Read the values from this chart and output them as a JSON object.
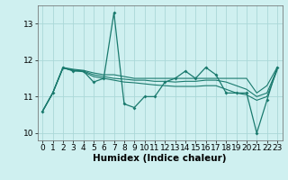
{
  "xlabel": "Humidex (Indice chaleur)",
  "x": [
    0,
    1,
    2,
    3,
    4,
    5,
    6,
    7,
    8,
    9,
    10,
    11,
    12,
    13,
    14,
    15,
    16,
    17,
    18,
    19,
    20,
    21,
    22,
    23
  ],
  "y_main": [
    10.6,
    11.1,
    11.8,
    11.7,
    11.7,
    11.4,
    11.5,
    13.3,
    10.8,
    10.7,
    11.0,
    11.0,
    11.4,
    11.5,
    11.7,
    11.5,
    11.8,
    11.6,
    11.1,
    11.1,
    11.1,
    10.0,
    10.9,
    11.8
  ],
  "y_trend1": [
    10.6,
    11.1,
    11.8,
    11.75,
    11.72,
    11.65,
    11.6,
    11.6,
    11.55,
    11.5,
    11.5,
    11.5,
    11.5,
    11.5,
    11.5,
    11.5,
    11.5,
    11.5,
    11.5,
    11.5,
    11.5,
    11.1,
    11.3,
    11.8
  ],
  "y_trend2": [
    10.6,
    11.1,
    11.78,
    11.73,
    11.7,
    11.6,
    11.55,
    11.5,
    11.48,
    11.45,
    11.45,
    11.42,
    11.42,
    11.4,
    11.42,
    11.42,
    11.45,
    11.45,
    11.4,
    11.3,
    11.2,
    11.0,
    11.1,
    11.75
  ],
  "y_trend3": [
    10.6,
    11.1,
    11.78,
    11.72,
    11.68,
    11.55,
    11.5,
    11.45,
    11.4,
    11.38,
    11.35,
    11.32,
    11.3,
    11.28,
    11.28,
    11.28,
    11.3,
    11.3,
    11.2,
    11.1,
    11.05,
    10.9,
    11.0,
    11.72
  ],
  "ylim": [
    9.8,
    13.5
  ],
  "xlim": [
    -0.5,
    23.5
  ],
  "yticks": [
    10,
    11,
    12,
    13
  ],
  "xticks": [
    0,
    1,
    2,
    3,
    4,
    5,
    6,
    7,
    8,
    9,
    10,
    11,
    12,
    13,
    14,
    15,
    16,
    17,
    18,
    19,
    20,
    21,
    22,
    23
  ],
  "bg_color": "#cff0f0",
  "grid_color": "#aad8d8",
  "line_color": "#1a7a6e",
  "tick_fontsize": 6.5,
  "xlabel_fontsize": 7.5
}
